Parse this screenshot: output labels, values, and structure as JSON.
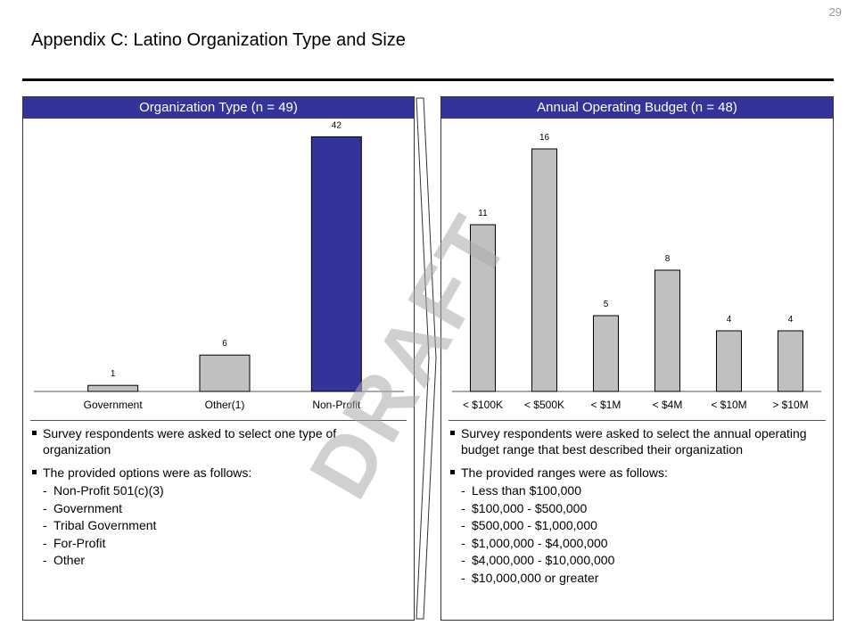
{
  "page_number": "29",
  "title": "Appendix C: Latino Organization Type and Size",
  "watermark": "DRAFT",
  "colors": {
    "header_bg": "#333399",
    "bar_highlight": "#333399",
    "bar_default": "#C0C0C0"
  },
  "left_panel": {
    "header": "Organization Type (n = 49)",
    "bullets": [
      "Survey respondents were asked to select one type of organization",
      "The provided options were as follows:"
    ],
    "options": [
      "Non-Profit 501(c)(3)",
      "Government",
      "Tribal Government",
      "For-Profit",
      "Other"
    ]
  },
  "right_panel": {
    "header": "Annual Operating Budget (n = 48)",
    "bullets": [
      "Survey respondents were asked to select the annual operating budget range that best described their organization",
      "The provided ranges were as follows:"
    ],
    "options": [
      "Less than $100,000",
      "$100,000 - $500,000",
      "$500,000 - $1,000,000",
      "$1,000,000 - $4,000,000",
      "$4,000,000 - $10,000,000",
      "$10,000,000 or greater"
    ]
  },
  "chart_data": [
    {
      "type": "bar",
      "title": "Organization Type (n = 49)",
      "categories": [
        "Government",
        "Other(1)",
        "Non-Profit"
      ],
      "values": [
        1,
        6,
        42
      ],
      "highlight": [
        false,
        false,
        true
      ],
      "ylim": [
        0,
        45
      ],
      "grid": false
    },
    {
      "type": "bar",
      "title": "Annual Operating Budget (n = 48)",
      "categories": [
        "< $100K",
        "< $500K",
        "< $1M",
        "< $4M",
        "< $10M",
        "> $10M"
      ],
      "values": [
        11,
        16,
        5,
        8,
        4,
        4
      ],
      "ylim": [
        0,
        17
      ],
      "grid": false
    }
  ]
}
